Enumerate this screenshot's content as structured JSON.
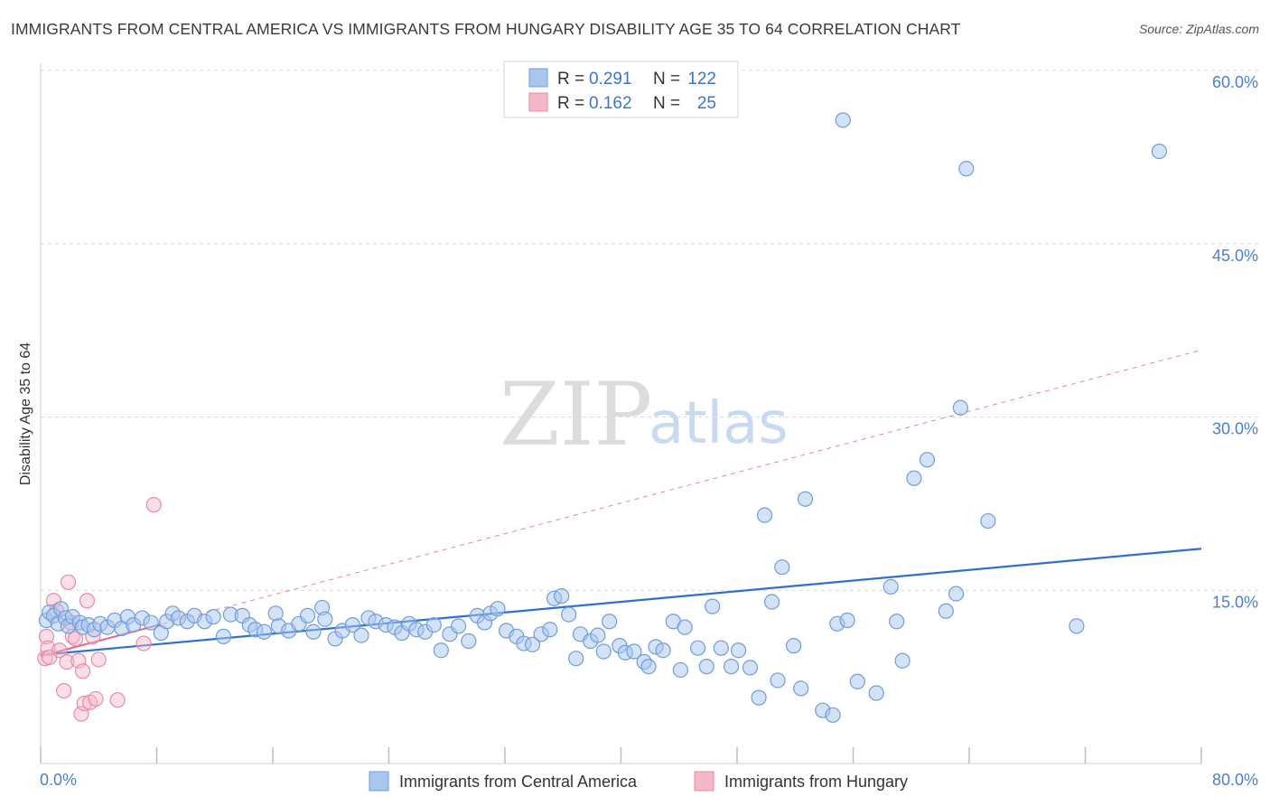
{
  "title": "IMMIGRANTS FROM CENTRAL AMERICA VS IMMIGRANTS FROM HUNGARY DISABILITY AGE 35 TO 64 CORRELATION CHART",
  "source": "Source: ZipAtlas.com",
  "watermark": {
    "part1": "ZIP",
    "part2": "atlas"
  },
  "legend": {
    "series1": {
      "r_label": "R =",
      "r_value": "0.291",
      "n_label": "N =",
      "n_value": "122"
    },
    "series2": {
      "r_label": "R =",
      "r_value": "0.162",
      "n_label": "N =",
      "n_value": "25"
    }
  },
  "colors": {
    "blue_fill": "#a9c6ee",
    "blue_stroke": "#6f9ddc",
    "blue_line": "#2f6fce",
    "pink_fill": "#f6b8c9",
    "pink_stroke": "#e98aa8",
    "pink_line": "#e0648e",
    "grid": "#d9d9d9"
  },
  "chart_data": {
    "type": "scatter",
    "title": "IMMIGRANTS FROM CENTRAL AMERICA VS IMMIGRANTS FROM HUNGARY DISABILITY AGE 35 TO 64 CORRELATION CHART",
    "xlabel": "",
    "ylabel": "Disability Age 35 to 64",
    "xlim": [
      0,
      80
    ],
    "ylim": [
      0,
      60
    ],
    "x_tick_labels": [
      "0.0%",
      "80.0%"
    ],
    "y_ticks": [
      15,
      30,
      45,
      60
    ],
    "y_tick_labels": [
      "15.0%",
      "30.0%",
      "45.0%",
      "60.0%"
    ],
    "x_minor_ticks": [
      0,
      8,
      16,
      24,
      32,
      40,
      48,
      56,
      64,
      72,
      80
    ],
    "legend_position": "top-center",
    "series": [
      {
        "name": "Immigrants from Central America",
        "R": 0.291,
        "N": 122,
        "trend": {
          "x0": 0,
          "y0": 9.4,
          "x1": 80,
          "y1": 18.6
        },
        "points": [
          [
            0.4,
            12.4
          ],
          [
            0.6,
            13.1
          ],
          [
            0.9,
            12.8
          ],
          [
            1.2,
            12.1
          ],
          [
            1.4,
            13.4
          ],
          [
            1.7,
            12.6
          ],
          [
            1.9,
            11.9
          ],
          [
            2.2,
            12.7
          ],
          [
            2.7,
            12.2
          ],
          [
            2.9,
            11.8
          ],
          [
            3.3,
            12.0
          ],
          [
            3.7,
            11.6
          ],
          [
            4.1,
            12.1
          ],
          [
            4.6,
            11.8
          ],
          [
            5.1,
            12.4
          ],
          [
            5.6,
            11.7
          ],
          [
            6.0,
            12.7
          ],
          [
            6.4,
            12.0
          ],
          [
            7.0,
            12.6
          ],
          [
            7.6,
            12.2
          ],
          [
            8.3,
            11.3
          ],
          [
            8.7,
            12.3
          ],
          [
            9.1,
            13.0
          ],
          [
            9.5,
            12.6
          ],
          [
            10.1,
            12.3
          ],
          [
            10.6,
            12.8
          ],
          [
            11.3,
            12.3
          ],
          [
            11.9,
            12.7
          ],
          [
            12.6,
            11.0
          ],
          [
            13.1,
            12.9
          ],
          [
            13.9,
            12.8
          ],
          [
            14.4,
            12.0
          ],
          [
            14.8,
            11.6
          ],
          [
            15.4,
            11.4
          ],
          [
            16.2,
            13.0
          ],
          [
            16.4,
            11.9
          ],
          [
            17.1,
            11.5
          ],
          [
            17.8,
            12.1
          ],
          [
            18.4,
            12.8
          ],
          [
            18.8,
            11.4
          ],
          [
            19.4,
            13.5
          ],
          [
            19.6,
            12.5
          ],
          [
            20.3,
            10.8
          ],
          [
            20.8,
            11.5
          ],
          [
            21.5,
            12.0
          ],
          [
            22.1,
            11.1
          ],
          [
            22.6,
            12.6
          ],
          [
            23.1,
            12.3
          ],
          [
            23.8,
            12.0
          ],
          [
            24.4,
            11.8
          ],
          [
            24.9,
            11.3
          ],
          [
            25.4,
            12.1
          ],
          [
            25.9,
            11.6
          ],
          [
            26.5,
            11.4
          ],
          [
            27.1,
            12.0
          ],
          [
            27.6,
            9.8
          ],
          [
            28.2,
            11.2
          ],
          [
            28.8,
            11.9
          ],
          [
            29.5,
            10.6
          ],
          [
            30.1,
            12.8
          ],
          [
            30.6,
            12.2
          ],
          [
            31.0,
            13.0
          ],
          [
            31.5,
            13.4
          ],
          [
            32.1,
            11.5
          ],
          [
            32.8,
            11.0
          ],
          [
            33.3,
            10.4
          ],
          [
            33.9,
            10.3
          ],
          [
            34.5,
            11.2
          ],
          [
            35.1,
            11.6
          ],
          [
            35.4,
            14.3
          ],
          [
            35.9,
            14.5
          ],
          [
            36.4,
            12.9
          ],
          [
            36.9,
            9.1
          ],
          [
            37.2,
            11.2
          ],
          [
            37.9,
            10.6
          ],
          [
            38.4,
            11.1
          ],
          [
            38.8,
            9.7
          ],
          [
            39.2,
            12.3
          ],
          [
            39.9,
            10.2
          ],
          [
            40.3,
            9.6
          ],
          [
            40.9,
            9.7
          ],
          [
            41.6,
            8.8
          ],
          [
            41.9,
            8.4
          ],
          [
            42.4,
            10.1
          ],
          [
            42.9,
            9.8
          ],
          [
            43.6,
            12.3
          ],
          [
            44.1,
            8.1
          ],
          [
            44.4,
            11.8
          ],
          [
            45.3,
            10.0
          ],
          [
            45.9,
            8.4
          ],
          [
            46.3,
            13.6
          ],
          [
            46.9,
            10.0
          ],
          [
            47.6,
            8.4
          ],
          [
            48.1,
            9.8
          ],
          [
            48.9,
            8.3
          ],
          [
            49.5,
            5.7
          ],
          [
            49.9,
            21.5
          ],
          [
            50.4,
            14.0
          ],
          [
            50.8,
            7.2
          ],
          [
            51.1,
            17.0
          ],
          [
            51.9,
            10.2
          ],
          [
            52.4,
            6.5
          ],
          [
            52.7,
            22.9
          ],
          [
            53.9,
            4.6
          ],
          [
            54.6,
            4.2
          ],
          [
            54.9,
            12.1
          ],
          [
            55.3,
            55.7
          ],
          [
            55.6,
            12.4
          ],
          [
            56.3,
            7.1
          ],
          [
            57.6,
            6.1
          ],
          [
            58.6,
            15.3
          ],
          [
            59.0,
            12.3
          ],
          [
            59.4,
            8.9
          ],
          [
            60.2,
            24.7
          ],
          [
            61.1,
            26.3
          ],
          [
            62.4,
            13.2
          ],
          [
            63.1,
            14.7
          ],
          [
            63.4,
            30.8
          ],
          [
            63.8,
            51.5
          ],
          [
            65.3,
            21.0
          ],
          [
            71.4,
            11.9
          ],
          [
            77.1,
            53.0
          ]
        ]
      },
      {
        "name": "Immigrants from Hungary",
        "R": 0.162,
        "N": 25,
        "trend": {
          "x0": 0,
          "y0": 9.3,
          "x1": 80,
          "y1": 35.8
        },
        "trend_solid_end_x": 8.3,
        "points": [
          [
            0.3,
            9.1
          ],
          [
            0.4,
            11.0
          ],
          [
            0.5,
            10.0
          ],
          [
            0.6,
            9.2
          ],
          [
            0.9,
            14.1
          ],
          [
            1.1,
            13.2
          ],
          [
            1.3,
            9.8
          ],
          [
            1.6,
            6.3
          ],
          [
            1.8,
            8.8
          ],
          [
            1.9,
            15.7
          ],
          [
            2.1,
            12.2
          ],
          [
            2.2,
            11.0
          ],
          [
            2.4,
            10.8
          ],
          [
            2.6,
            8.9
          ],
          [
            2.8,
            4.3
          ],
          [
            2.9,
            8.0
          ],
          [
            3.0,
            5.2
          ],
          [
            3.2,
            14.1
          ],
          [
            3.4,
            5.3
          ],
          [
            3.6,
            11.0
          ],
          [
            3.8,
            5.6
          ],
          [
            4.0,
            9.0
          ],
          [
            5.3,
            5.5
          ],
          [
            7.1,
            10.4
          ],
          [
            7.8,
            22.4
          ]
        ]
      }
    ]
  },
  "bottom_legend": {
    "item1": "Immigrants from Central America",
    "item2": "Immigrants from Hungary"
  }
}
